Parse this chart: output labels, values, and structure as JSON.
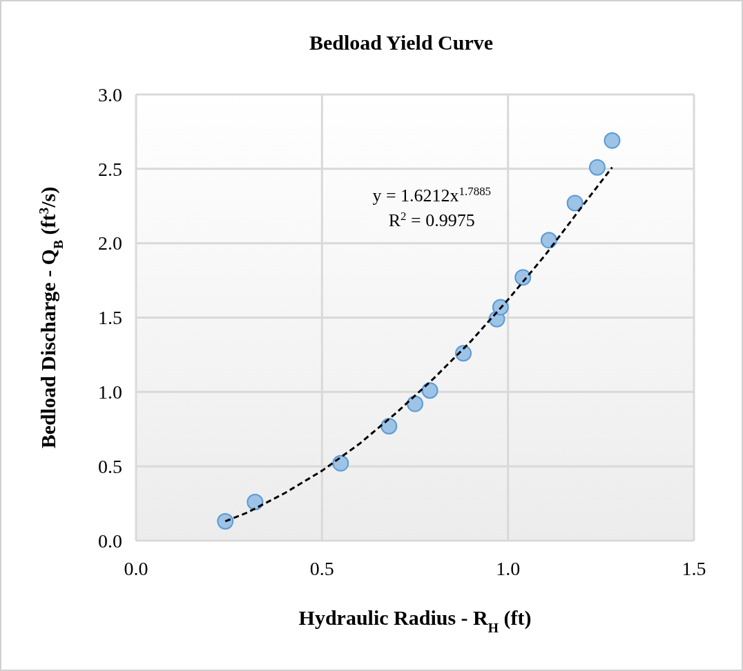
{
  "chart_data": {
    "type": "scatter",
    "title": "Bedload Yield Curve",
    "xlabel": "Hydraulic Radius - R$_{H}$ (ft)",
    "ylabel": "Bedload Discharge - Q$_{B}$ (ft$^{3}$/s)",
    "xlim": [
      0,
      1.5
    ],
    "xticks": [
      {
        "value": 0,
        "label": "0.0"
      },
      {
        "value": 0.5,
        "label": "0.5"
      },
      {
        "value": 1,
        "label": "1.0"
      },
      {
        "value": 1.5,
        "label": "1.5"
      }
    ],
    "ylim": [
      0,
      3
    ],
    "yticks": [
      {
        "value": 0,
        "label": "0.0"
      },
      {
        "value": 0.5,
        "label": "0.5"
      },
      {
        "value": 1,
        "label": "1.0"
      },
      {
        "value": 1.5,
        "label": "1.5"
      },
      {
        "value": 2,
        "label": "2.0"
      },
      {
        "value": 2.5,
        "label": "2.5"
      },
      {
        "value": 3,
        "label": "3.0"
      }
    ],
    "grid": true,
    "marker": "circle",
    "annotations": [
      "y = 1.6212x$^{1.7885}$",
      "R$^{2}$ = 0.9975"
    ],
    "series": [
      {
        "color": "#9dc3e6",
        "x": [
          0.24,
          0.32,
          0.55,
          0.68,
          0.75,
          0.79,
          0.88,
          0.97,
          0.98,
          1.04,
          1.11,
          1.18,
          1.24,
          1.28
        ],
        "values": [
          0.13,
          0.26,
          0.52,
          0.77,
          0.92,
          1.01,
          1.26,
          1.49,
          1.57,
          1.77,
          2.02,
          2.27,
          2.51,
          2.69
        ]
      },
      {
        "type": "line",
        "color": "#000000",
        "line_style": "dashed",
        "marker": "none",
        "x": [
          0.24,
          0.3,
          0.4,
          0.5,
          0.6,
          0.7,
          0.8,
          0.9,
          1.0,
          1.1,
          1.2,
          1.28
        ],
        "values": [
          0.13,
          0.19,
          0.32,
          0.47,
          0.65,
          0.86,
          1.09,
          1.34,
          1.62,
          1.92,
          2.25,
          2.51
        ]
      }
    ]
  }
}
